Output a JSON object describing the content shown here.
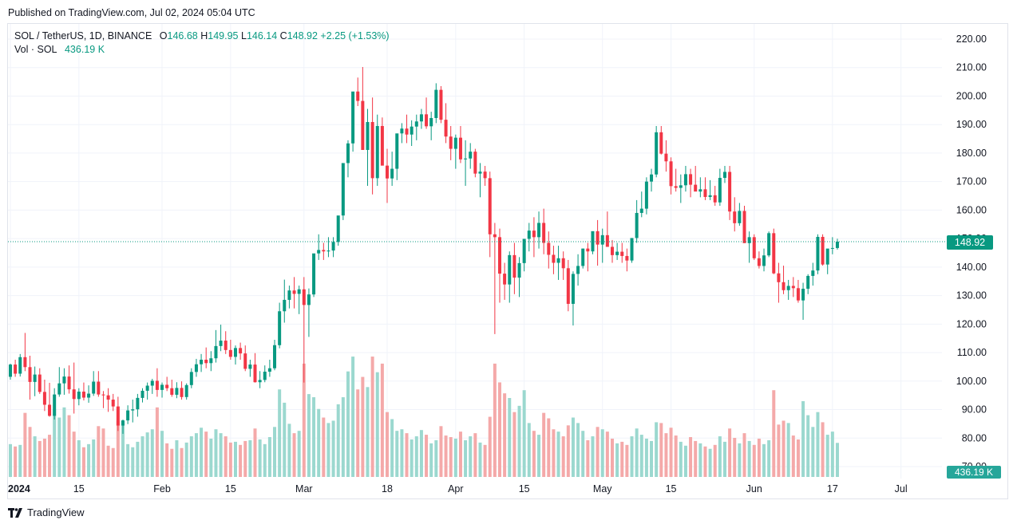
{
  "header": {
    "published": "Published on TradingView.com, Jul 02, 2024 05:04 UTC"
  },
  "legend": {
    "symbol": "SOL / TetherUS, 1D, BINANCE",
    "open_label": "O",
    "open": "146.68",
    "high_label": "H",
    "high": "149.95",
    "low_label": "L",
    "low": "146.14",
    "close_label": "C",
    "close": "148.92",
    "change": "+2.25 (+1.53%)",
    "volume_label": "Vol · SOL",
    "volume": "436.19 K"
  },
  "last_price_tag": "148.92",
  "volume_tag": "436.19 K",
  "brand": {
    "name": "TradingView"
  },
  "colors": {
    "up": "#089981",
    "down": "#f23645",
    "vol_up": "#9bd8cf",
    "vol_down": "#f4a9a9",
    "grid": "#f0f3fa"
  },
  "chart_data": {
    "type": "candlestick",
    "title": "SOL / TetherUS, 1D, BINANCE",
    "price_axis": {
      "range": [
        68,
        224
      ],
      "ticks": [
        "220.00",
        "210.00",
        "200.00",
        "190.00",
        "180.00",
        "170.00",
        "160.00",
        "150.00",
        "140.00",
        "130.00",
        "120.00",
        "110.00",
        "100.00",
        "90.00",
        "80.00",
        "70.00"
      ]
    },
    "time_axis": {
      "labels": [
        {
          "label": "2024",
          "day": 0,
          "bold": true
        },
        {
          "label": "15",
          "day": 14
        },
        {
          "label": "Feb",
          "day": 31
        },
        {
          "label": "15",
          "day": 45
        },
        {
          "label": "Mar",
          "day": 60
        },
        {
          "label": "18",
          "day": 77
        },
        {
          "label": "Apr",
          "day": 91
        },
        {
          "label": "15",
          "day": 105
        },
        {
          "label": "May",
          "day": 121
        },
        {
          "label": "15",
          "day": 135
        },
        {
          "label": "Jun",
          "day": 152
        },
        {
          "label": "17",
          "day": 168
        },
        {
          "label": "Jul",
          "day": 182
        }
      ]
    },
    "grid": true,
    "volume_series": {
      "name": "Vol · SOL",
      "last": "436.19 K",
      "unit": "K"
    },
    "ohlcv": [
      [
        101.5,
        106.1,
        100.5,
        105.8,
        420
      ],
      [
        105.8,
        107.5,
        101.5,
        102.6,
        390
      ],
      [
        102.6,
        109.5,
        101.6,
        108.4,
        410
      ],
      [
        108.4,
        116.9,
        103.5,
        104.9,
        820
      ],
      [
        104.9,
        108.9,
        93.5,
        99.7,
        640
      ],
      [
        99.7,
        105.1,
        94.7,
        102.3,
        520
      ],
      [
        102.3,
        104.5,
        95.5,
        96.2,
        460
      ],
      [
        96.2,
        100.5,
        89.5,
        91.7,
        490
      ],
      [
        91.7,
        99.4,
        87.5,
        87.8,
        540
      ],
      [
        87.8,
        97.5,
        86.5,
        95.3,
        870
      ],
      [
        95.3,
        104.9,
        94.5,
        99.2,
        760
      ],
      [
        99.2,
        104.5,
        95.2,
        101.6,
        890
      ],
      [
        101.6,
        105.5,
        95.6,
        97.1,
        790
      ],
      [
        97.1,
        106.5,
        88.6,
        93.7,
        580
      ],
      [
        93.7,
        97.5,
        91.5,
        96.3,
        470
      ],
      [
        96.3,
        99.5,
        93.2,
        94.2,
        380
      ],
      [
        94.2,
        98.5,
        92.4,
        95.6,
        420
      ],
      [
        95.6,
        103.5,
        94.8,
        99.8,
        480
      ],
      [
        99.8,
        103.5,
        94.5,
        95.3,
        650
      ],
      [
        95.3,
        96.5,
        90.5,
        95.0,
        620
      ],
      [
        95.0,
        97.5,
        89.2,
        93.5,
        400
      ],
      [
        93.5,
        95.5,
        89.5,
        91.1,
        370
      ],
      [
        91.1,
        94.5,
        82.5,
        84.4,
        720
      ],
      [
        84.4,
        86.5,
        81.5,
        86.2,
        690
      ],
      [
        86.2,
        91.5,
        84.9,
        89.7,
        420
      ],
      [
        89.7,
        93.5,
        85.5,
        90.1,
        380
      ],
      [
        90.1,
        95.5,
        87.5,
        94.1,
        450
      ],
      [
        94.1,
        97.5,
        92.5,
        96.6,
        520
      ],
      [
        96.6,
        99.5,
        93.5,
        98.4,
        570
      ],
      [
        98.4,
        100.8,
        95.5,
        100.1,
        610
      ],
      [
        100.1,
        104.5,
        94.5,
        96.9,
        890
      ],
      [
        96.9,
        99.5,
        94.2,
        98.7,
        590
      ],
      [
        98.7,
        101.5,
        96.5,
        97.5,
        430
      ],
      [
        97.5,
        100.5,
        94.5,
        95.2,
        360
      ],
      [
        95.2,
        99.6,
        94.0,
        97.6,
        470
      ],
      [
        97.6,
        99.9,
        93.5,
        94.4,
        370
      ],
      [
        94.4,
        99.2,
        93.5,
        98.6,
        440
      ],
      [
        98.6,
        104.5,
        97.5,
        103.2,
        520
      ],
      [
        103.2,
        107.8,
        101.5,
        105.9,
        560
      ],
      [
        105.9,
        109.5,
        103.2,
        107.5,
        630
      ],
      [
        107.5,
        111.8,
        104.5,
        106.3,
        580
      ],
      [
        106.3,
        110.5,
        103.5,
        108.0,
        490
      ],
      [
        108.0,
        117.9,
        106.5,
        112.3,
        610
      ],
      [
        112.3,
        119.8,
        110.5,
        114.2,
        560
      ],
      [
        114.2,
        117.5,
        109.5,
        110.9,
        520
      ],
      [
        110.9,
        114.5,
        107.5,
        108.5,
        440
      ],
      [
        108.5,
        112.5,
        105.8,
        111.6,
        450
      ],
      [
        111.6,
        113.5,
        107.5,
        109.7,
        410
      ],
      [
        109.7,
        112.5,
        103.5,
        104.3,
        460
      ],
      [
        104.3,
        107.5,
        101.5,
        105.8,
        470
      ],
      [
        105.8,
        109.8,
        99.5,
        99.6,
        620
      ],
      [
        99.6,
        103.5,
        97.5,
        100.4,
        480
      ],
      [
        100.4,
        105.5,
        99.6,
        103.3,
        420
      ],
      [
        103.3,
        107.5,
        101.5,
        104.5,
        510
      ],
      [
        104.5,
        114.5,
        103.8,
        112.6,
        640
      ],
      [
        112.6,
        127.5,
        111.5,
        124.5,
        1120
      ],
      [
        124.5,
        135.6,
        120.5,
        128.5,
        950
      ],
      [
        128.5,
        133.5,
        125.5,
        131.8,
        680
      ],
      [
        131.8,
        136.5,
        125.5,
        130.6,
        560
      ],
      [
        130.6,
        133.5,
        123.5,
        132.2,
        590
      ],
      [
        132.2,
        136.5,
        99.5,
        126.7,
        1450
      ],
      [
        126.7,
        132.5,
        115.5,
        130.4,
        1060
      ],
      [
        130.4,
        141.5,
        129.5,
        144.8,
        1020
      ],
      [
        144.8,
        151.5,
        142.5,
        146.0,
        870
      ],
      [
        146.0,
        148.5,
        142.5,
        145.5,
        760
      ],
      [
        145.5,
        150.5,
        143.5,
        145.8,
        690
      ],
      [
        145.8,
        150.5,
        143.5,
        148.8,
        720
      ],
      [
        148.8,
        156.5,
        147.5,
        158.1,
        930
      ],
      [
        158.1,
        170.5,
        156.5,
        176.5,
        1020
      ],
      [
        176.5,
        184.5,
        171.5,
        183.4,
        1350
      ],
      [
        183.4,
        195.5,
        180.5,
        201.6,
        1540
      ],
      [
        201.6,
        206.5,
        196.5,
        198.3,
        1120
      ],
      [
        198.3,
        210.2,
        186.5,
        181.1,
        1280
      ],
      [
        181.1,
        195.5,
        168.5,
        190.9,
        1150
      ],
      [
        190.9,
        199.5,
        165.5,
        171.2,
        1540
      ],
      [
        171.2,
        193.5,
        168.5,
        189.5,
        1340
      ],
      [
        189.5,
        192.5,
        176.5,
        175.6,
        1450
      ],
      [
        175.6,
        181.5,
        162.5,
        171.1,
        830
      ],
      [
        171.1,
        180.5,
        168.5,
        174.5,
        740
      ],
      [
        174.5,
        182.5,
        170.5,
        186.9,
        590
      ],
      [
        186.9,
        190.5,
        183.5,
        188.6,
        610
      ],
      [
        188.6,
        193.5,
        183.5,
        186.5,
        560
      ],
      [
        186.5,
        191.5,
        182.5,
        189.3,
        480
      ],
      [
        189.3,
        193.5,
        184.5,
        191.1,
        520
      ],
      [
        191.1,
        195.5,
        188.5,
        193.6,
        600
      ],
      [
        193.6,
        199.5,
        188.5,
        189.4,
        540
      ],
      [
        189.4,
        194.5,
        184.5,
        192.3,
        430
      ],
      [
        192.3,
        204.5,
        190.5,
        202.2,
        470
      ],
      [
        202.2,
        203.5,
        190.5,
        191.7,
        650
      ],
      [
        191.7,
        197.5,
        183.5,
        185.8,
        530
      ],
      [
        185.8,
        189.5,
        177.5,
        181.5,
        510
      ],
      [
        181.5,
        186.5,
        174.5,
        185.4,
        490
      ],
      [
        185.4,
        189.5,
        176.5,
        177.8,
        580
      ],
      [
        177.8,
        184.5,
        168.5,
        178.1,
        470
      ],
      [
        178.1,
        183.5,
        174.5,
        180.5,
        520
      ],
      [
        180.5,
        181.5,
        171.5,
        172.8,
        560
      ],
      [
        172.8,
        176.5,
        164.5,
        173.5,
        440
      ],
      [
        173.5,
        175.5,
        168.5,
        171.2,
        410
      ],
      [
        171.2,
        173.5,
        143.5,
        151.5,
        770
      ],
      [
        151.5,
        155.5,
        116.5,
        150.5,
        1450
      ],
      [
        150.5,
        153.5,
        127.5,
        137.7,
        1210
      ],
      [
        137.7,
        141.5,
        128.5,
        133.9,
        1070
      ],
      [
        133.9,
        145.5,
        127.5,
        144.2,
        1010
      ],
      [
        144.2,
        148.5,
        130.5,
        136.3,
        830
      ],
      [
        136.3,
        143.5,
        129.5,
        141.4,
        910
      ],
      [
        141.4,
        147.5,
        138.5,
        149.9,
        1110
      ],
      [
        149.9,
        155.5,
        145.5,
        152.8,
        690
      ],
      [
        152.8,
        157.5,
        143.5,
        150.5,
        590
      ],
      [
        150.5,
        159.5,
        146.5,
        155.5,
        540
      ],
      [
        155.5,
        160.5,
        144.5,
        148.5,
        820
      ],
      [
        148.5,
        152.5,
        139.5,
        144.3,
        750
      ],
      [
        144.3,
        147.5,
        137.5,
        141.5,
        610
      ],
      [
        141.5,
        147.5,
        135.5,
        143.1,
        580
      ],
      [
        143.1,
        145.5,
        135.5,
        139.6,
        520
      ],
      [
        139.6,
        142.5,
        124.5,
        127.1,
        660
      ],
      [
        127.1,
        138.5,
        119.5,
        137.6,
        760
      ],
      [
        137.6,
        144.5,
        133.5,
        140.4,
        690
      ],
      [
        140.4,
        146.5,
        139.5,
        146.5,
        590
      ],
      [
        146.5,
        148.5,
        138.5,
        145.5,
        470
      ],
      [
        145.5,
        152.5,
        144.5,
        152.6,
        520
      ],
      [
        152.6,
        156.5,
        140.5,
        147.9,
        640
      ],
      [
        147.9,
        153.5,
        141.5,
        151.2,
        610
      ],
      [
        151.2,
        159.5,
        150.5,
        147.1,
        580
      ],
      [
        147.1,
        149.5,
        141.5,
        144.2,
        490
      ],
      [
        144.2,
        148.5,
        142.5,
        145.4,
        430
      ],
      [
        145.4,
        148.5,
        141.5,
        143.9,
        450
      ],
      [
        143.9,
        146.5,
        138.5,
        142.3,
        410
      ],
      [
        142.3,
        149.5,
        141.5,
        150.2,
        520
      ],
      [
        150.2,
        163.5,
        148.5,
        159.0,
        620
      ],
      [
        159.0,
        166.5,
        157.5,
        160.5,
        540
      ],
      [
        160.5,
        171.5,
        158.5,
        170.0,
        490
      ],
      [
        170.0,
        174.5,
        166.5,
        172.5,
        460
      ],
      [
        172.5,
        189.5,
        171.5,
        187.3,
        700
      ],
      [
        187.3,
        189.5,
        179.5,
        179.8,
        690
      ],
      [
        179.8,
        184.5,
        173.5,
        177.1,
        560
      ],
      [
        177.1,
        178.5,
        165.5,
        168.4,
        630
      ],
      [
        168.4,
        174.5,
        166.5,
        167.8,
        530
      ],
      [
        167.8,
        172.5,
        162.5,
        168.7,
        450
      ],
      [
        168.7,
        175.5,
        166.5,
        172.6,
        400
      ],
      [
        172.6,
        174.5,
        164.5,
        168.9,
        510
      ],
      [
        168.9,
        175.5,
        167.5,
        166.5,
        460
      ],
      [
        166.5,
        171.5,
        164.5,
        167.3,
        430
      ],
      [
        167.3,
        171.5,
        163.5,
        164.6,
        390
      ],
      [
        164.6,
        170.5,
        163.5,
        165.2,
        360
      ],
      [
        165.2,
        168.5,
        161.5,
        162.7,
        410
      ],
      [
        162.7,
        174.5,
        161.5,
        171.3,
        520
      ],
      [
        171.3,
        175.5,
        169.5,
        173.4,
        450
      ],
      [
        173.4,
        175.5,
        156.5,
        159.5,
        620
      ],
      [
        159.5,
        164.5,
        152.5,
        155.4,
        500
      ],
      [
        155.4,
        162.5,
        154.5,
        159.7,
        430
      ],
      [
        159.7,
        161.5,
        149.5,
        148.4,
        560
      ],
      [
        148.4,
        152.5,
        141.5,
        150.5,
        460
      ],
      [
        150.5,
        151.5,
        142.5,
        143.1,
        410
      ],
      [
        143.1,
        145.5,
        139.5,
        140.4,
        490
      ],
      [
        140.4,
        146.5,
        138.5,
        144.1,
        420
      ],
      [
        144.1,
        152.5,
        143.5,
        151.9,
        470
      ],
      [
        151.9,
        153.5,
        137.5,
        137.8,
        1110
      ],
      [
        137.8,
        141.5,
        127.5,
        134.7,
        670
      ],
      [
        134.7,
        140.5,
        130.5,
        131.9,
        720
      ],
      [
        131.9,
        135.5,
        128.5,
        133.4,
        690
      ],
      [
        133.4,
        136.5,
        129.5,
        132.6,
        530
      ],
      [
        132.6,
        135.5,
        127.5,
        128.3,
        480
      ],
      [
        128.3,
        134.5,
        121.5,
        132.4,
        970
      ],
      [
        132.4,
        137.5,
        130.5,
        136.9,
        790
      ],
      [
        136.9,
        141.5,
        133.5,
        138.8,
        640
      ],
      [
        138.8,
        151.5,
        137.5,
        150.6,
        830
      ],
      [
        150.6,
        151.5,
        140.5,
        140.9,
        700
      ],
      [
        140.9,
        143.5,
        137.5,
        146.5,
        540
      ],
      [
        146.5,
        150.5,
        144.5,
        146.7,
        580
      ],
      [
        146.7,
        149.95,
        146.14,
        148.92,
        436
      ]
    ]
  }
}
